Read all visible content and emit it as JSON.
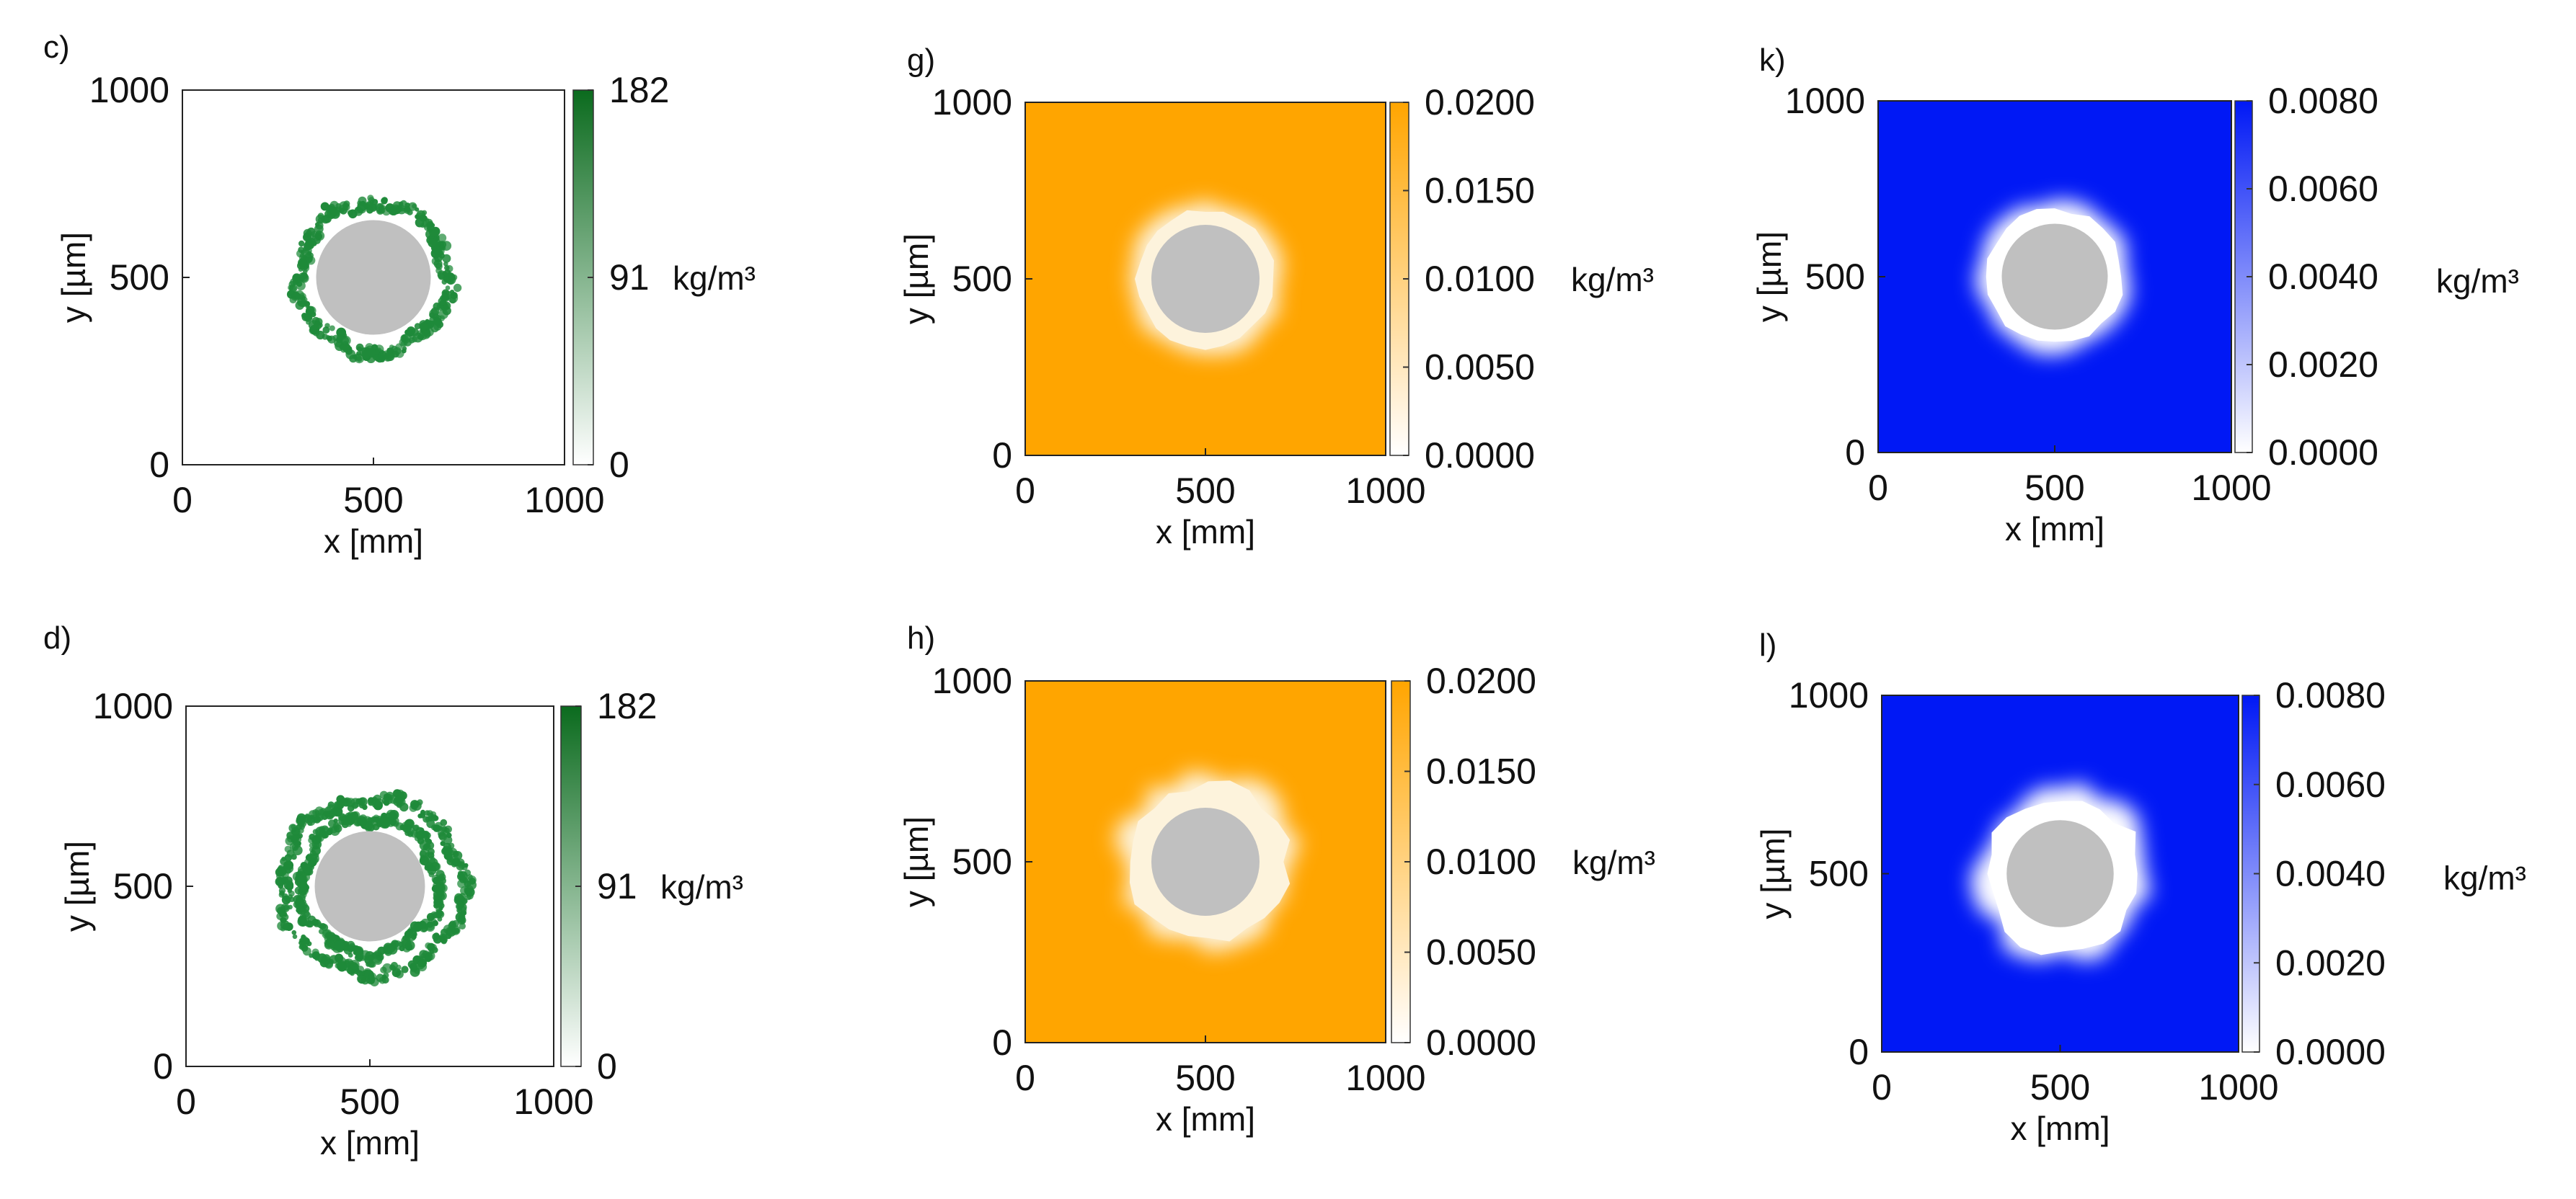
{
  "chart_data": [
    {
      "type": "heatmap",
      "panel_label": "c)",
      "xlabel": "x [mm]",
      "ylabel": "y [µm]",
      "xlim": [
        0,
        1000
      ],
      "ylim": [
        0,
        1000
      ],
      "x_ticks": [
        "0",
        "500",
        "1000"
      ],
      "y_ticks": [
        "0",
        "500",
        "1000"
      ],
      "colorbar": {
        "min": 0,
        "max": 182,
        "ticks": [
          "0",
          "91",
          "182"
        ],
        "unit": "kg/m³",
        "color_low": "#ffffff",
        "color_high": "#0b6b1e"
      },
      "field_color": "#ffffff",
      "feature": {
        "kind": "ring",
        "color": "#1f8a3a",
        "shape": "ragged-thin-band"
      },
      "obstacle": {
        "center": [
          500,
          500
        ],
        "radius": 150,
        "color": "#c0c0c0"
      }
    },
    {
      "type": "heatmap",
      "panel_label": "g)",
      "xlabel": "x [mm]",
      "ylabel": "y [µm]",
      "xlim": [
        0,
        1000
      ],
      "ylim": [
        0,
        1000
      ],
      "x_ticks": [
        "0",
        "500",
        "1000"
      ],
      "y_ticks": [
        "0",
        "500",
        "1000"
      ],
      "colorbar": {
        "min": 0,
        "max": 0.02,
        "ticks": [
          "0.0000",
          "0.0050",
          "0.0100",
          "0.0150",
          "0.0200"
        ],
        "unit": "kg/m³",
        "color_low": "#ffffff",
        "color_high": "#ffa500"
      },
      "field_color": "#ffa500",
      "feature": {
        "kind": "depleted-halo",
        "color": "#fdf3dc",
        "shape": "round"
      },
      "obstacle": {
        "center": [
          500,
          500
        ],
        "radius": 150,
        "color": "#c0c0c0"
      }
    },
    {
      "type": "heatmap",
      "panel_label": "k)",
      "xlabel": "x [mm]",
      "ylabel": "y [µm]",
      "xlim": [
        0,
        1000
      ],
      "ylim": [
        0,
        1000
      ],
      "x_ticks": [
        "0",
        "500",
        "1000"
      ],
      "y_ticks": [
        "0",
        "500",
        "1000"
      ],
      "colorbar": {
        "min": 0,
        "max": 0.008,
        "ticks": [
          "0.0000",
          "0.0020",
          "0.0040",
          "0.0060",
          "0.0080"
        ],
        "unit": "kg/m³",
        "color_low": "#ffffff",
        "color_high": "#0018f5"
      },
      "field_color": "#0018f5",
      "feature": {
        "kind": "depleted-halo",
        "color": "#ffffff",
        "shape": "round"
      },
      "obstacle": {
        "center": [
          500,
          500
        ],
        "radius": 150,
        "color": "#c0c0c0"
      }
    },
    {
      "type": "heatmap",
      "panel_label": "d)",
      "xlabel": "x [mm]",
      "ylabel": "y [µm]",
      "xlim": [
        0,
        1000
      ],
      "ylim": [
        0,
        1000
      ],
      "x_ticks": [
        "0",
        "500",
        "1000"
      ],
      "y_ticks": [
        "0",
        "500",
        "1000"
      ],
      "colorbar": {
        "min": 0,
        "max": 182,
        "ticks": [
          "0",
          "91",
          "182"
        ],
        "unit": "kg/m³",
        "color_low": "#ffffff",
        "color_high": "#0b6b1e"
      },
      "field_color": "#ffffff",
      "feature": {
        "kind": "ring",
        "color": "#1f8a3a",
        "shape": "ragged-double-band"
      },
      "obstacle": {
        "center": [
          500,
          500
        ],
        "radius": 150,
        "color": "#c0c0c0"
      }
    },
    {
      "type": "heatmap",
      "panel_label": "h)",
      "xlabel": "x [mm]",
      "ylabel": "y [µm]",
      "xlim": [
        0,
        1000
      ],
      "ylim": [
        0,
        1000
      ],
      "x_ticks": [
        "0",
        "500",
        "1000"
      ],
      "y_ticks": [
        "0",
        "500",
        "1000"
      ],
      "colorbar": {
        "min": 0,
        "max": 0.02,
        "ticks": [
          "0.0000",
          "0.0050",
          "0.0100",
          "0.0150",
          "0.0200"
        ],
        "unit": "kg/m³",
        "color_low": "#ffffff",
        "color_high": "#ffa500"
      },
      "field_color": "#ffa500",
      "feature": {
        "kind": "depleted-halo",
        "color": "#fdf3dc",
        "shape": "lumpy"
      },
      "obstacle": {
        "center": [
          500,
          500
        ],
        "radius": 150,
        "color": "#c0c0c0"
      }
    },
    {
      "type": "heatmap",
      "panel_label": "l)",
      "xlabel": "x [mm]",
      "ylabel": "y [µm]",
      "xlim": [
        0,
        1000
      ],
      "ylim": [
        0,
        1000
      ],
      "x_ticks": [
        "0",
        "500",
        "1000"
      ],
      "y_ticks": [
        "0",
        "500",
        "1000"
      ],
      "colorbar": {
        "min": 0,
        "max": 0.008,
        "ticks": [
          "0.0000",
          "0.0020",
          "0.0040",
          "0.0060",
          "0.0080"
        ],
        "unit": "kg/m³",
        "color_low": "#ffffff",
        "color_high": "#0018f5"
      },
      "field_color": "#0018f5",
      "feature": {
        "kind": "depleted-halo",
        "color": "#ffffff",
        "shape": "lumpy"
      },
      "obstacle": {
        "center": [
          500,
          500
        ],
        "radius": 150,
        "color": "#c0c0c0"
      }
    }
  ]
}
